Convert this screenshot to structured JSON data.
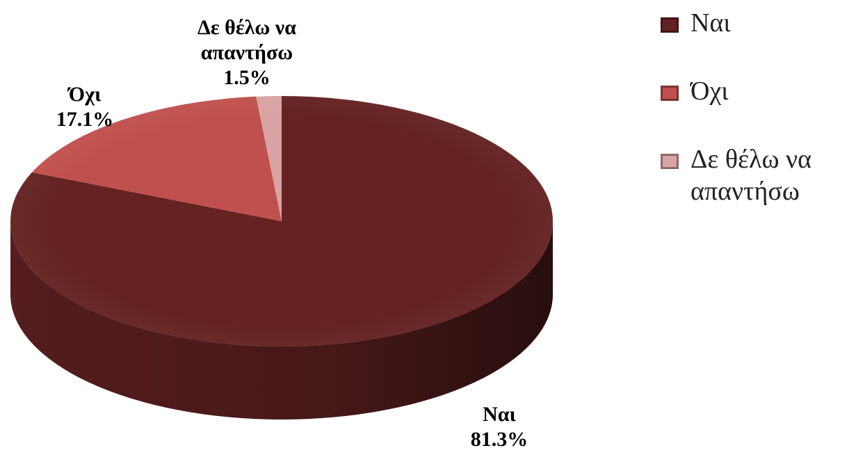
{
  "chart_data": {
    "type": "pie",
    "categories": [
      "Ναι",
      "Όχι",
      "Δε θέλω να απαντήσω"
    ],
    "values": [
      81.3,
      17.1,
      1.5
    ],
    "value_labels": [
      "81.3%",
      "17.1%",
      "1.5%"
    ],
    "colors": [
      "#642222",
      "#c0504d",
      "#d9a3a3"
    ],
    "legend": "right"
  }
}
